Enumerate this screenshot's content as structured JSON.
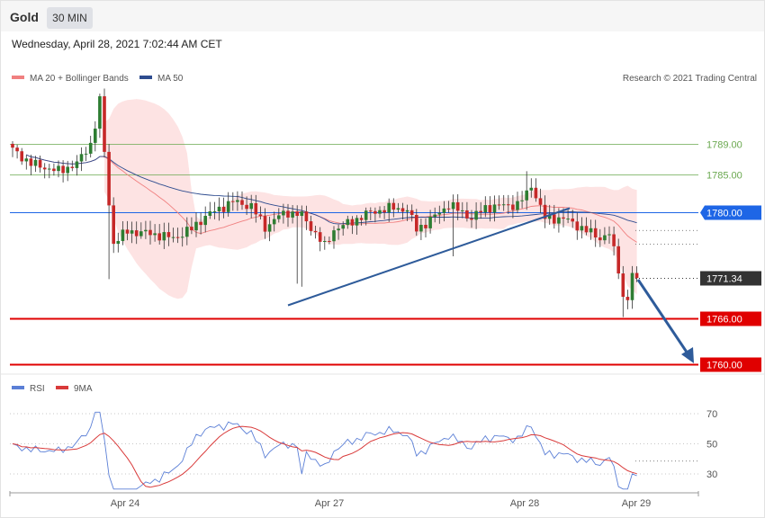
{
  "header": {
    "title": "Gold",
    "timeframe": "30 MIN"
  },
  "timestamp": "Wednesday, April 28, 2021 7:02:44 AM CET",
  "legend": {
    "ma20": "MA 20 + Bollinger Bands",
    "ma50": "MA 50",
    "credit": "Research © 2021 Trading Central"
  },
  "rsi_legend": {
    "rsi": "RSI",
    "ma9": "9MA"
  },
  "colors": {
    "bollinger": "#fde3e3",
    "ma20": "#f08080",
    "ma50": "#2e4c8f",
    "resistance_green": "#6aa84f",
    "level_blue": "#1e66e6",
    "support_red": "#e00000",
    "current": "#333333",
    "candle_up": "#2e7d32",
    "candle_down": "#c62828",
    "trend_arrow": "#2e5b9a",
    "rsi": "#5b7fd6",
    "rsi_ma": "#d93a3a"
  },
  "chart_data": [
    {
      "type": "candlestick",
      "x_labels": [
        "Apr 24",
        "Apr 27",
        "Apr 28",
        "Apr 29"
      ],
      "ylim": [
        1760,
        1792
      ],
      "levels": [
        {
          "label": "1789.00",
          "value": 1789.0,
          "kind": "resistance",
          "style": "thin-green"
        },
        {
          "label": "1785.00",
          "value": 1785.0,
          "kind": "resistance",
          "style": "thin-green"
        },
        {
          "label": "1780.00",
          "value": 1780.0,
          "kind": "pivot",
          "style": "blue-tag"
        },
        {
          "label": "1771.34",
          "value": 1771.34,
          "kind": "current",
          "style": "dark-tag"
        },
        {
          "label": "1766.00",
          "value": 1766.0,
          "kind": "support",
          "style": "red-tag"
        },
        {
          "label": "1760.00",
          "value": 1760.0,
          "kind": "support",
          "style": "red-tag"
        }
      ],
      "series": [
        {
          "name": "MA 20 + Bollinger Bands"
        },
        {
          "name": "MA 50"
        }
      ]
    },
    {
      "type": "line",
      "y_ticks": [
        70,
        50,
        30
      ],
      "ylim": [
        18,
        78
      ],
      "series": [
        {
          "name": "RSI"
        },
        {
          "name": "9MA"
        }
      ]
    }
  ]
}
